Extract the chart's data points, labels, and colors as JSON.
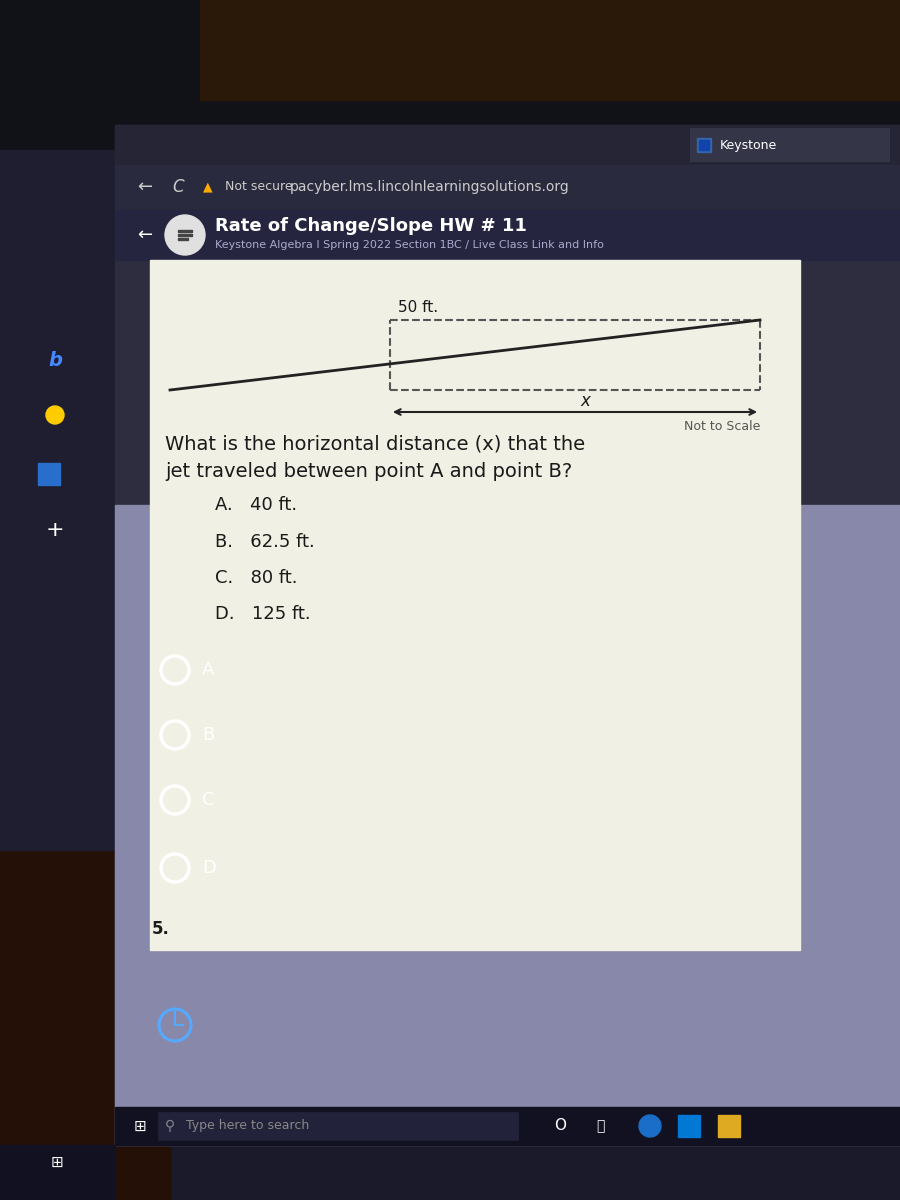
{
  "bg_outer": "#0d0d0d",
  "bg_top_dark": "#1a1a2a",
  "browser_bg": "#2d2d3f",
  "header_bg": "#2d2d3f",
  "content_bg": "#f0f0e4",
  "panel_bg": "#8888aa",
  "taskbar_bg": "#1a1a2e",
  "taskbar_search_bg": "#2a2a40",
  "hand_color": "#2a1508",
  "sidebar_left_bg": "#1a1a2e",
  "browser_url": "pacyber.lms.lincolnlearningsolutions.org",
  "browser_not_secure": "Not secure",
  "keystone_label": "Keystone",
  "title": "Rate of Change/Slope HW # 11",
  "subtitle": "Keystone Algebra I Spring 2022 Section 1BC / Live Class Link and Info",
  "diagram_label_50ft": "50 ft.",
  "diagram_label_x": "x",
  "diagram_not_to_scale": "Not to Scale",
  "question_line1": "What is the horizontal distance (x) that the",
  "question_line2": "jet traveled between point A and point B?",
  "choices": [
    "A.   40 ft.",
    "B.   62.5 ft.",
    "C.   80 ft.",
    "D.   125 ft."
  ],
  "question_number": "5.",
  "radio_labels": [
    "A",
    "B",
    "C",
    "D"
  ],
  "taskbar_text": "Type here to search",
  "text_dark": "#1a1a1a",
  "text_white": "#ffffff",
  "text_gray": "#cccccc",
  "diagram_line_color": "#222222",
  "dashed_color": "#555555"
}
